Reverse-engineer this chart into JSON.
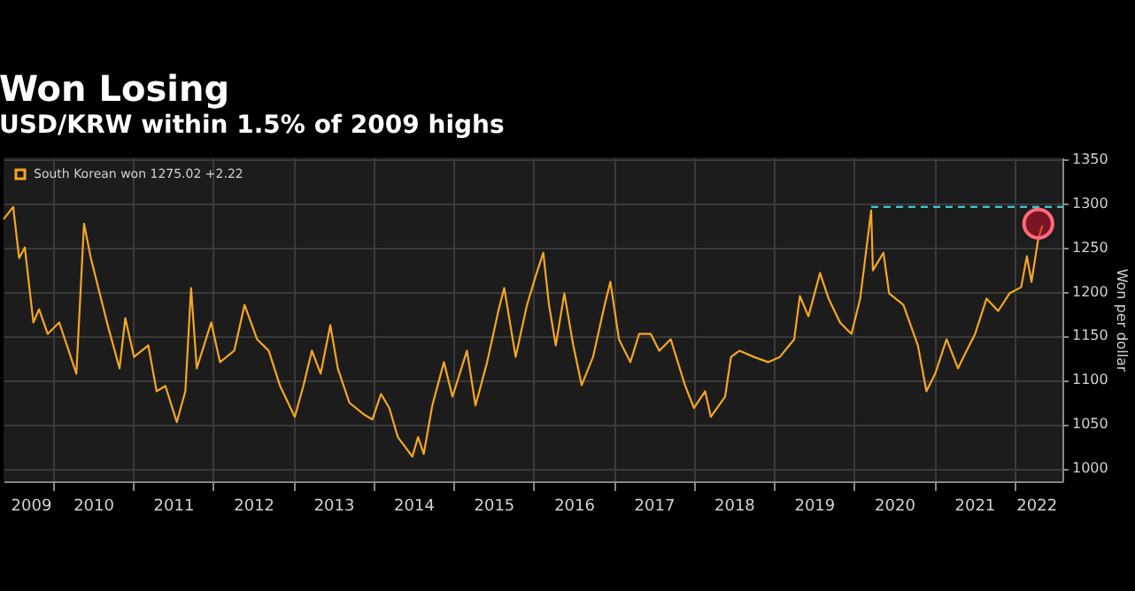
{
  "chart_data": {
    "type": "line",
    "title": "Won Losing",
    "subtitle": "USD/KRW within 1.5% of 2009 highs",
    "ylabel": "Won per dollar",
    "xlim": [
      "2009-05-20",
      "2022-08-08"
    ],
    "ylim": [
      985,
      1352
    ],
    "yticks": [
      1000,
      1050,
      1100,
      1150,
      1200,
      1250,
      1300,
      1350
    ],
    "xticks": [
      {
        "value": "2009-09-20",
        "label": "2009"
      },
      {
        "value": "2010-01-01",
        "label": null
      },
      {
        "value": "2010-07-02",
        "label": "2010"
      },
      {
        "value": "2011-01-01",
        "label": null
      },
      {
        "value": "2011-07-02",
        "label": "2011"
      },
      {
        "value": "2012-01-01",
        "label": null
      },
      {
        "value": "2012-07-02",
        "label": "2012"
      },
      {
        "value": "2013-01-01",
        "label": null
      },
      {
        "value": "2013-07-02",
        "label": "2013"
      },
      {
        "value": "2014-01-01",
        "label": null
      },
      {
        "value": "2014-07-02",
        "label": "2014"
      },
      {
        "value": "2015-01-01",
        "label": null
      },
      {
        "value": "2015-07-02",
        "label": "2015"
      },
      {
        "value": "2016-01-01",
        "label": null
      },
      {
        "value": "2016-07-02",
        "label": "2016"
      },
      {
        "value": "2017-01-01",
        "label": null
      },
      {
        "value": "2017-07-02",
        "label": "2017"
      },
      {
        "value": "2018-01-01",
        "label": null
      },
      {
        "value": "2018-07-02",
        "label": "2018"
      },
      {
        "value": "2019-01-01",
        "label": null
      },
      {
        "value": "2019-07-02",
        "label": "2019"
      },
      {
        "value": "2020-01-01",
        "label": null
      },
      {
        "value": "2020-07-02",
        "label": "2020"
      },
      {
        "value": "2021-01-01",
        "label": null
      },
      {
        "value": "2021-07-02",
        "label": "2021"
      },
      {
        "value": "2022-01-01",
        "label": null
      },
      {
        "value": "2022-04-10",
        "label": "2022"
      }
    ],
    "grid": true,
    "legend": "top left",
    "series": [
      {
        "name": "South Korean won 1275.02 +2.22",
        "color": "#f5a623",
        "x": [
          "2009-05-20",
          "2009-07-03",
          "2009-07-30",
          "2009-08-25",
          "2009-10-03",
          "2009-10-29",
          "2009-12-07",
          "2010-01-29",
          "2010-04-17",
          "2010-05-22",
          "2010-06-22",
          "2010-09-09",
          "2010-10-31",
          "2010-11-26",
          "2011-01-05",
          "2011-03-11",
          "2011-04-18",
          "2011-05-28",
          "2011-07-19",
          "2011-08-27",
          "2011-09-22",
          "2011-10-18",
          "2011-12-23",
          "2012-02-01",
          "2012-04-06",
          "2012-05-23",
          "2012-07-19",
          "2012-09-10",
          "2012-11-01",
          "2013-01-07",
          "2013-02-15",
          "2013-03-26",
          "2013-05-05",
          "2013-06-18",
          "2013-07-22",
          "2013-09-13",
          "2013-11-17",
          "2013-12-27",
          "2014-02-04",
          "2014-03-14",
          "2014-04-22",
          "2014-06-27",
          "2014-07-23",
          "2014-08-18",
          "2014-09-26",
          "2014-11-18",
          "2014-12-27",
          "2015-03-03",
          "2015-04-11",
          "2015-06-03",
          "2015-07-25",
          "2015-08-20",
          "2015-10-11",
          "2015-12-02",
          "2016-01-11",
          "2016-02-14",
          "2016-03-11",
          "2016-04-11",
          "2016-05-20",
          "2016-06-29",
          "2016-08-07",
          "2016-09-28",
          "2016-11-20",
          "2016-12-16",
          "2017-01-24",
          "2017-03-17",
          "2017-04-26",
          "2017-06-18",
          "2017-07-27",
          "2017-09-17",
          "2017-11-21",
          "2018-01-01",
          "2018-02-21",
          "2018-03-19",
          "2018-05-23",
          "2018-06-19",
          "2018-07-28",
          "2018-10-01",
          "2018-12-06",
          "2019-01-28",
          "2019-04-03",
          "2019-04-29",
          "2019-06-07",
          "2019-07-30",
          "2019-09-07",
          "2019-10-29",
          "2019-12-20",
          "2020-01-29",
          "2020-03-19",
          "2020-03-27",
          "2020-05-14",
          "2020-06-09",
          "2020-08-13",
          "2020-10-18",
          "2020-11-26",
          "2021-01-05",
          "2021-02-26",
          "2021-04-19",
          "2021-05-28",
          "2021-07-06",
          "2021-08-27",
          "2021-10-19",
          "2021-12-10",
          "2022-02-01",
          "2022-02-27",
          "2022-03-20",
          "2022-04-20",
          "2022-05-09"
        ],
        "values": [
          1282,
          1296,
          1238,
          1250,
          1165,
          1180,
          1152,
          1165,
          1107,
          1277,
          1238,
          1160,
          1113,
          1170,
          1126,
          1139,
          1087,
          1093,
          1052,
          1087,
          1204,
          1113,
          1165,
          1120,
          1133,
          1185,
          1146,
          1133,
          1093,
          1058,
          1093,
          1133,
          1107,
          1162,
          1113,
          1074,
          1061,
          1055,
          1084,
          1068,
          1035,
          1013,
          1035,
          1016,
          1071,
          1120,
          1081,
          1133,
          1071,
          1120,
          1179,
          1204,
          1126,
          1185,
          1218,
          1244,
          1185,
          1139,
          1198,
          1140,
          1094,
          1126,
          1185,
          1211,
          1146,
          1120,
          1152,
          1152,
          1133,
          1146,
          1094,
          1068,
          1087,
          1058,
          1081,
          1126,
          1133,
          1126,
          1120,
          1126,
          1146,
          1195,
          1172,
          1221,
          1192,
          1165,
          1152,
          1192,
          1292,
          1224,
          1244,
          1198,
          1185,
          1139,
          1087,
          1107,
          1146,
          1113,
          1133,
          1152,
          1192,
          1178,
          1198,
          1205,
          1240,
          1211,
          1260,
          1275
        ]
      },
      {
        "type": "line",
        "color": "#3ec9d6",
        "line_style": "dashed",
        "x": [
          "2020-03-19",
          "2022-08-08"
        ],
        "values": [
          1296,
          1296
        ]
      },
      {
        "type": "scatter",
        "color": "#c8102e",
        "marker": "circle",
        "x": [
          "2022-04-20"
        ],
        "values": [
          1277
        ]
      }
    ]
  }
}
